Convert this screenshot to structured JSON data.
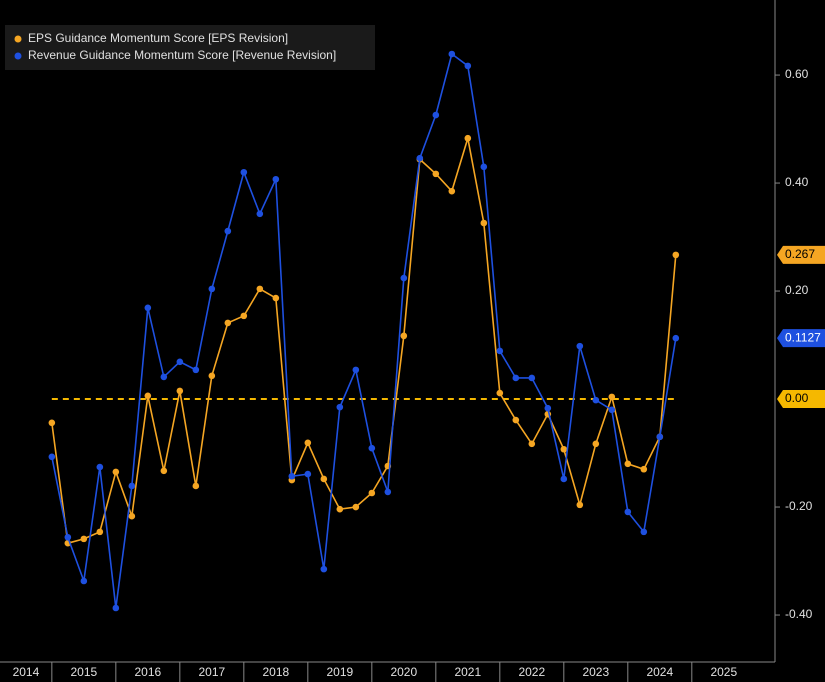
{
  "chart_data": {
    "type": "line",
    "legend": "top-left",
    "x": [
      2015,
      2015.25,
      2015.5,
      2015.75,
      2016,
      2016.25,
      2016.5,
      2016.75,
      2017,
      2017.25,
      2017.5,
      2017.75,
      2018,
      2018.25,
      2018.5,
      2018.75,
      2019,
      2019.25,
      2019.5,
      2019.75,
      2020,
      2020.25,
      2020.5,
      2020.75,
      2021,
      2021.25,
      2021.5,
      2021.75,
      2022,
      2022.25,
      2022.5,
      2022.75,
      2023,
      2023.25,
      2023.5,
      2023.75,
      2024,
      2024.25,
      2024.5,
      2024.75
    ],
    "series": [
      {
        "name": "EPS Guidance Momentum Score [EPS Revision]",
        "color": "#f5a623",
        "values": [
          -0.044,
          -0.267,
          -0.259,
          -0.246,
          -0.135,
          -0.217,
          0.006,
          -0.133,
          0.015,
          -0.161,
          0.043,
          0.141,
          0.154,
          0.204,
          0.187,
          -0.15,
          -0.081,
          -0.148,
          -0.204,
          -0.2,
          -0.174,
          -0.124,
          0.117,
          0.444,
          0.417,
          0.385,
          0.483,
          0.326,
          0.011,
          -0.039,
          -0.083,
          -0.028,
          -0.093,
          -0.196,
          -0.083,
          0.004,
          -0.12,
          -0.13,
          -0.07,
          0.267
        ]
      },
      {
        "name": "Revenue Guidance Momentum Score [Revenue Revision]",
        "color": "#1e50e0",
        "values": [
          -0.107,
          -0.256,
          -0.337,
          -0.126,
          -0.387,
          -0.161,
          0.169,
          0.041,
          0.069,
          0.054,
          0.204,
          0.311,
          0.42,
          0.343,
          0.407,
          -0.143,
          -0.139,
          -0.315,
          -0.015,
          0.054,
          -0.091,
          -0.172,
          0.224,
          0.446,
          0.526,
          0.639,
          0.617,
          0.43,
          0.089,
          0.039,
          0.039,
          -0.017,
          -0.148,
          0.098,
          -0.002,
          -0.02,
          -0.209,
          -0.246,
          -0.07,
          0.1127
        ]
      }
    ],
    "reference_line": {
      "value": 0,
      "label": "0.00",
      "color": "#f5b800"
    },
    "xlim": [
      2014.19,
      2026.3
    ],
    "xticks": [
      {
        "value": 2014,
        "label": "2014"
      },
      {
        "value": 2015,
        "label": "2015"
      },
      {
        "value": 2016,
        "label": "2016"
      },
      {
        "value": 2017,
        "label": "2017"
      },
      {
        "value": 2018,
        "label": "2018"
      },
      {
        "value": 2019,
        "label": "2019"
      },
      {
        "value": 2020,
        "label": "2020"
      },
      {
        "value": 2021,
        "label": "2021"
      },
      {
        "value": 2022,
        "label": "2022"
      },
      {
        "value": 2023,
        "label": "2023"
      },
      {
        "value": 2024,
        "label": "2024"
      },
      {
        "value": 2025,
        "label": "2025"
      }
    ],
    "ylim": [
      -0.487,
      0.739
    ],
    "yticks": [
      {
        "value": -0.4,
        "label": "-0.40"
      },
      {
        "value": -0.2,
        "label": "-0.20"
      },
      {
        "value": 0.2,
        "label": "0.20"
      },
      {
        "value": 0.4,
        "label": "0.40"
      },
      {
        "value": 0.6,
        "label": "0.60"
      }
    ]
  }
}
